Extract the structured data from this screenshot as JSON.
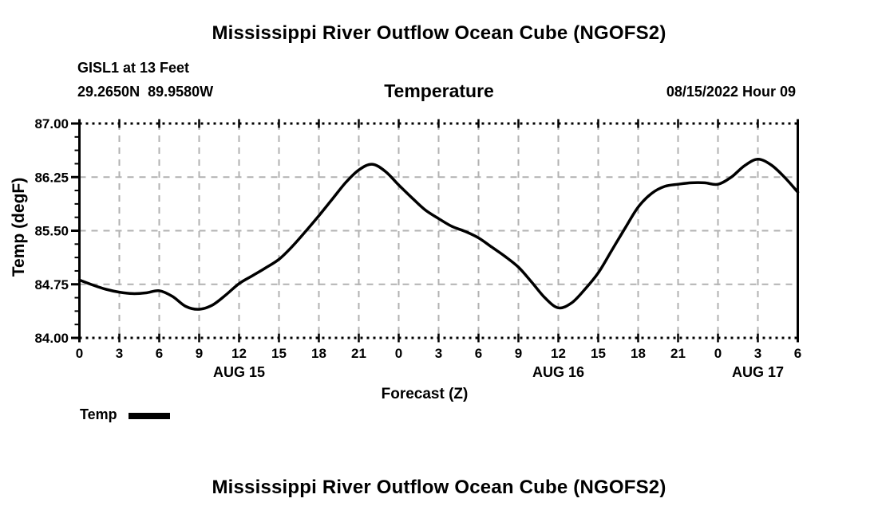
{
  "page": {
    "title": "Mississippi River Outflow Ocean Cube (NGOFS2)",
    "station_line": "GISL1 at 13 Feet",
    "coords_line": "29.2650N  89.9580W",
    "panel_title": "Temperature",
    "datetime_label": "08/15/2022 Hour 09",
    "next_chart_title": "Mississippi River Outflow Ocean Cube (NGOFS2)"
  },
  "legend": {
    "label": "Temp"
  },
  "colors": {
    "line": "#000000",
    "grid": "#b2b2b2",
    "axis": "#000000",
    "text": "#000000",
    "background": "#ffffff"
  },
  "chart_data": {
    "type": "line",
    "title": "Temperature",
    "xlabel": "Forecast (Z)",
    "ylabel": "Temp (degF)",
    "ylim": [
      84.0,
      87.0
    ],
    "y_major_tick_interval": 0.75,
    "y_minor_tick_interval": 0.1875,
    "y_tick_labels": [
      "84.00",
      "84.75",
      "85.50",
      "86.25",
      "87.00"
    ],
    "x_hours_range": [
      0,
      54
    ],
    "x_major_tick_interval_hours": 3,
    "x_tick_labels": [
      "0",
      "3",
      "6",
      "9",
      "12",
      "15",
      "18",
      "21",
      "0",
      "3",
      "6",
      "9",
      "12",
      "15",
      "18",
      "21",
      "0",
      "3",
      "6"
    ],
    "date_labels": [
      {
        "text": "AUG 15",
        "hour": 12
      },
      {
        "text": "AUG 16",
        "hour": 36
      },
      {
        "text": "AUG 17",
        "hour": 51
      }
    ],
    "grid": true,
    "legend_position": "bottom-left",
    "x": [
      0,
      1,
      2,
      3,
      4,
      5,
      6,
      7,
      8,
      9,
      10,
      11,
      12,
      13,
      14,
      15,
      16,
      17,
      18,
      19,
      20,
      21,
      22,
      23,
      24,
      25,
      26,
      27,
      28,
      29,
      30,
      31,
      32,
      33,
      34,
      35,
      36,
      37,
      38,
      39,
      40,
      41,
      42,
      43,
      44,
      45,
      46,
      47,
      48,
      49,
      50,
      51,
      52,
      53,
      54
    ],
    "series": [
      {
        "name": "Temp",
        "values": [
          84.81,
          84.74,
          84.68,
          84.64,
          84.62,
          84.63,
          84.66,
          84.58,
          84.44,
          84.4,
          84.46,
          84.6,
          84.76,
          84.87,
          84.98,
          85.1,
          85.28,
          85.49,
          85.71,
          85.94,
          86.17,
          86.35,
          86.43,
          86.33,
          86.14,
          85.96,
          85.79,
          85.67,
          85.56,
          85.49,
          85.4,
          85.27,
          85.14,
          84.99,
          84.78,
          84.56,
          84.42,
          84.49,
          84.68,
          84.91,
          85.22,
          85.53,
          85.83,
          86.02,
          86.12,
          86.15,
          86.17,
          86.17,
          86.15,
          86.25,
          86.41,
          86.5,
          86.42,
          86.25,
          86.04
        ]
      }
    ]
  }
}
